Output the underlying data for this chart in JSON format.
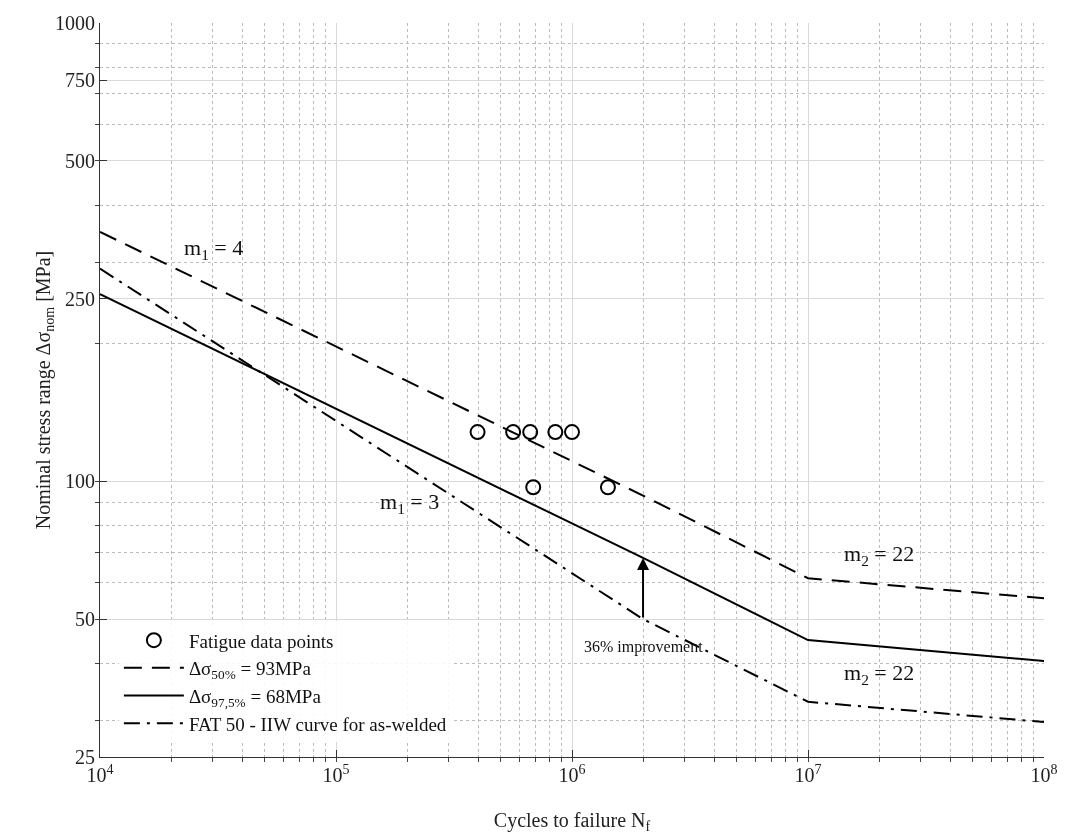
{
  "chart_data": {
    "type": "line",
    "xlabel": "Cycles to failure N$_{f}$",
    "ylabel": "Nominal stress range Δσ$_{nom}$ [MPa]",
    "log": "xy",
    "grid": true,
    "legend": "bottom left",
    "xlim": [
      10000,
      100000000
    ],
    "xticks": [
      {
        "value": 10000,
        "label": "10$^{4}$"
      },
      {
        "value": 100000,
        "label": "10$^{5}$"
      },
      {
        "value": 1000000,
        "label": "10$^{6}$"
      },
      {
        "value": 10000000,
        "label": "10$^{7}$"
      },
      {
        "value": 100000000,
        "label": "10$^{8}$"
      }
    ],
    "ylim": [
      25,
      1000
    ],
    "yticks": [
      25,
      50,
      100,
      250,
      500,
      750,
      1000
    ],
    "series": [
      {
        "name": "Fatigue data points",
        "type": "scatter",
        "marker": "circle",
        "color": "#000000",
        "x": [
          398000,
          563000,
          665000,
          850000,
          1000000,
          685000,
          1420000
        ],
        "values": [
          128,
          128,
          128,
          128,
          128,
          97,
          97
        ]
      },
      {
        "name": "Δσ$_{50%}$ = 93MPa",
        "line_style": "dashed",
        "color": "#000000",
        "x": [
          10000,
          2000000,
          10000000,
          100000000
        ],
        "values": [
          350,
          93,
          61.4,
          55.5
        ]
      },
      {
        "name": "Δσ$_{97,5%}$ = 68MPa",
        "line_style": "solid",
        "color": "#000000",
        "x": [
          10000,
          2000000,
          10000000,
          100000000
        ],
        "values": [
          256,
          68,
          45,
          40.5
        ]
      },
      {
        "name": "FAT 50 - IIW curve for as-welded",
        "line_style": "dashdot",
        "color": "#000000",
        "x": [
          10000,
          2000000,
          10000000,
          100000000
        ],
        "values": [
          291,
          50,
          33,
          29.8
        ]
      }
    ],
    "annotations": [
      "m$_{1}$ = 4",
      "m$_{1}$ = 3",
      "m$_{2}$ = 22",
      "m$_{2}$ = 22",
      {
        "text": "36% improvement",
        "x": 2000000,
        "y": 50
      }
    ]
  }
}
